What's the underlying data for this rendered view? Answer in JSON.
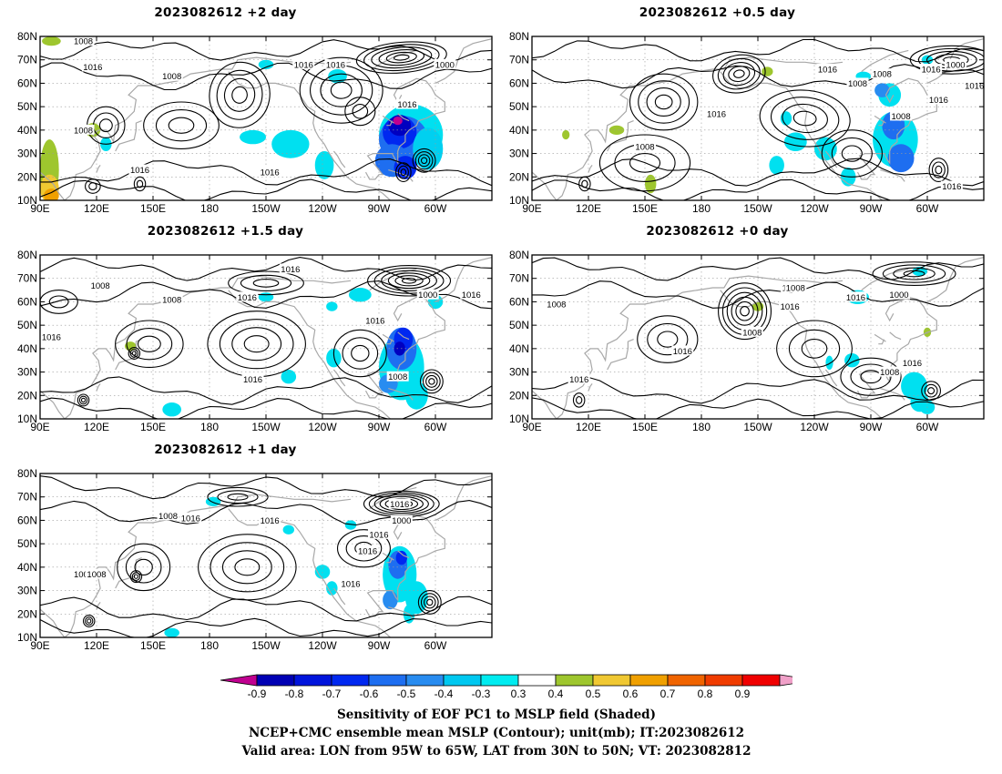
{
  "panels": [
    {
      "id": "p2",
      "title": "2023082612 +2 day",
      "contour_labels": [
        "1008",
        "1016",
        "1008",
        "1016",
        "1016",
        "1000",
        "1016",
        "1008",
        "1016",
        "1016"
      ]
    },
    {
      "id": "p05",
      "title": "2023082612 +0.5 day",
      "contour_labels": [
        "1016",
        "1016",
        "1008",
        "1016",
        "1008",
        "1000",
        "1016",
        "1008",
        "1016",
        "1016",
        "1008"
      ]
    },
    {
      "id": "p15",
      "title": "2023082612 +1.5 day",
      "contour_labels": [
        "1008",
        "1016",
        "1008",
        "1016",
        "1016",
        "1000",
        "1016",
        "1016",
        "1008",
        "1016"
      ]
    },
    {
      "id": "p0",
      "title": "2023082612 +0 day",
      "contour_labels": [
        "1016",
        "1008",
        "1016",
        "1008",
        "1016",
        "1016",
        "1000",
        "1008",
        "1016",
        "1008",
        "1016"
      ]
    },
    {
      "id": "p1",
      "title": "2023082612 +1 day",
      "contour_labels": [
        "1008",
        "1016",
        "1016",
        "1008",
        "1016",
        "1000",
        "1016",
        "1016",
        "1008",
        "1016"
      ]
    }
  ],
  "axes": {
    "lat_labels": [
      "80N",
      "70N",
      "60N",
      "50N",
      "40N",
      "30N",
      "20N",
      "10N"
    ],
    "lon_labels": [
      "90E",
      "120E",
      "150E",
      "180",
      "150W",
      "120W",
      "90W",
      "60W"
    ]
  },
  "colorbar": {
    "levels": [
      "-0.9",
      "-0.8",
      "-0.7",
      "-0.6",
      "-0.5",
      "-0.4",
      "-0.3",
      "0.3",
      "0.4",
      "0.5",
      "0.6",
      "0.7",
      "0.8",
      "0.9"
    ],
    "colors": [
      "#c00090",
      "#0000b4",
      "#0014dc",
      "#0028f0",
      "#1e6ef0",
      "#288cf0",
      "#00c8f0",
      "#00ecf0",
      "#ffffff",
      "#9ec62e",
      "#f0c832",
      "#f0a000",
      "#f06400",
      "#f03c00",
      "#f00000",
      "#f0a0c8"
    ]
  },
  "caption": {
    "line1": "Sensitivity of EOF PC1 to MSLP field (Shaded)",
    "line2": "NCEP+CMC ensemble mean MSLP (Contour); unit(mb); IT:2023082612",
    "line3": "Valid area: LON from 95W to 65W, LAT from 30N to 50N; VT: 2023082812"
  }
}
